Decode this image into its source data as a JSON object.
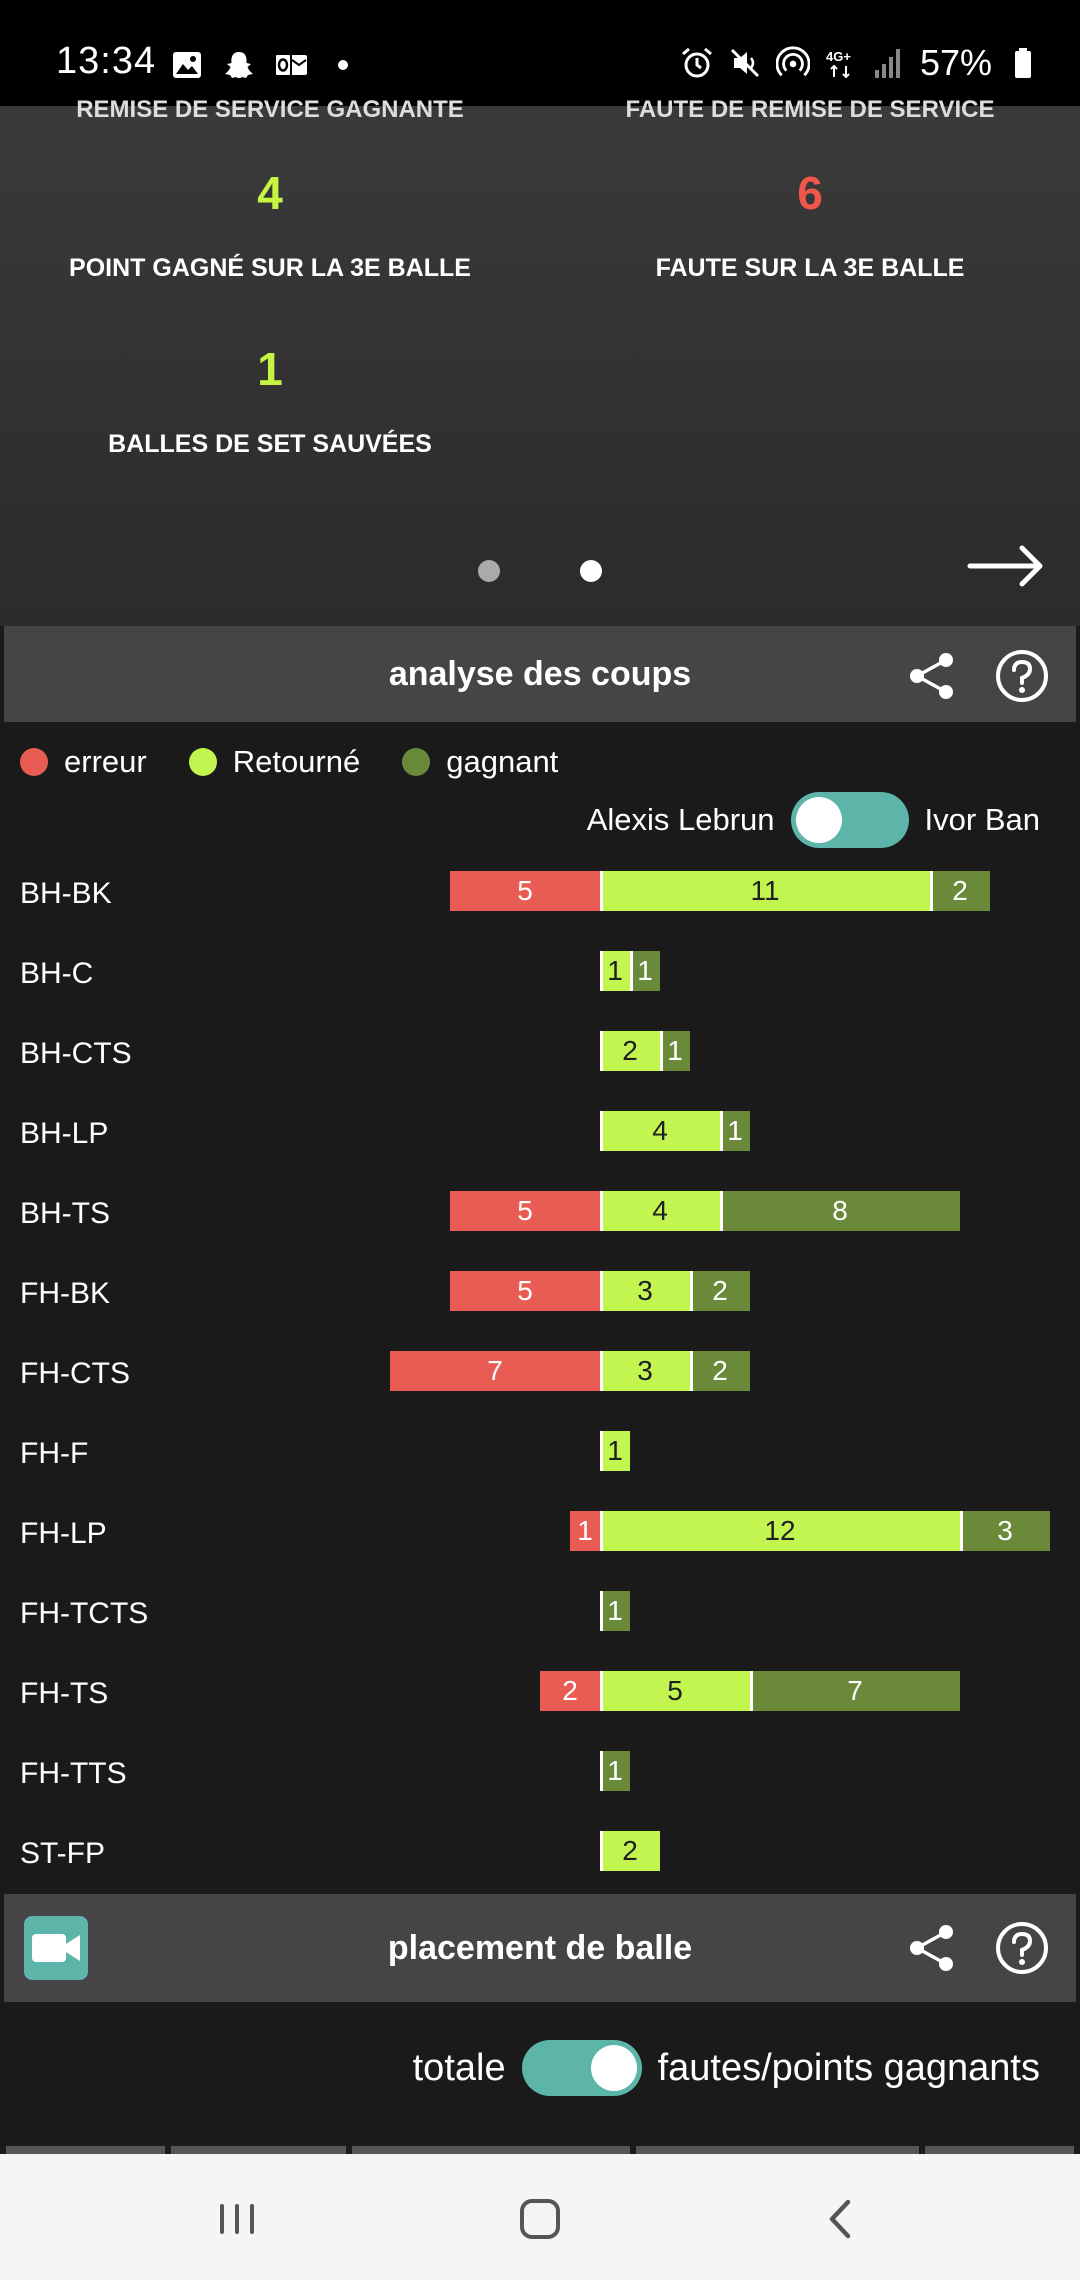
{
  "status_bar": {
    "time": "13:34",
    "battery": "57%",
    "left_icons": [
      "gallery-icon",
      "snapchat-icon",
      "outlook-icon",
      "dot-icon"
    ],
    "right_icons": [
      "alarm-icon",
      "mute-icon",
      "hotspot-icon",
      "4g-icon",
      "signal-icon",
      "battery-icon"
    ]
  },
  "stats_panel": {
    "cut_labels": [
      "REMISE DE SERVICE GAGNANTE",
      "FAUTE DE REMISE DE SERVICE"
    ],
    "stats": [
      {
        "value": "4",
        "label": "POINT GAGNÉ SUR LA 3E BALLE",
        "color": "#c5f542"
      },
      {
        "value": "6",
        "label": "FAUTE SUR LA 3E BALLE",
        "color": "#f0574a"
      },
      {
        "value": "1",
        "label": "BALLES DE SET SAUVÉES",
        "color": "#c5f542"
      }
    ],
    "page_count": 2,
    "active_page": 2
  },
  "shot_analysis": {
    "title": "analyse des coups",
    "legend": [
      {
        "label": "erreur",
        "color": "#e85c54"
      },
      {
        "label": "Retourné",
        "color": "#c2f54f"
      },
      {
        "label": "gagnant",
        "color": "#6a8a3a"
      }
    ],
    "player_left": "Alexis Lebrun",
    "player_right": "Ivor Ban",
    "toggle_on": false
  },
  "chart_data": {
    "type": "bar",
    "stacked": true,
    "categories": [
      "BH-BK",
      "BH-C",
      "BH-CTS",
      "BH-LP",
      "BH-TS",
      "FH-BK",
      "FH-CTS",
      "FH-F",
      "FH-LP",
      "FH-TCTS",
      "FH-TS",
      "FH-TTS",
      "ST-FP"
    ],
    "series": [
      {
        "name": "erreur",
        "color": "#e85c54",
        "values": [
          5,
          0,
          0,
          0,
          5,
          5,
          7,
          0,
          1,
          0,
          2,
          0,
          0
        ]
      },
      {
        "name": "Retourné",
        "color": "#c2f54f",
        "values": [
          11,
          1,
          2,
          4,
          4,
          3,
          3,
          1,
          12,
          0,
          5,
          0,
          2
        ]
      },
      {
        "name": "gagnant",
        "color": "#6a8a3a",
        "values": [
          2,
          1,
          1,
          1,
          8,
          2,
          2,
          0,
          3,
          1,
          7,
          1,
          0
        ]
      }
    ]
  },
  "placement": {
    "title": "placement de balle",
    "toggle_left": "totale",
    "toggle_right": "fautes/points gagnants",
    "toggle_on": true
  }
}
